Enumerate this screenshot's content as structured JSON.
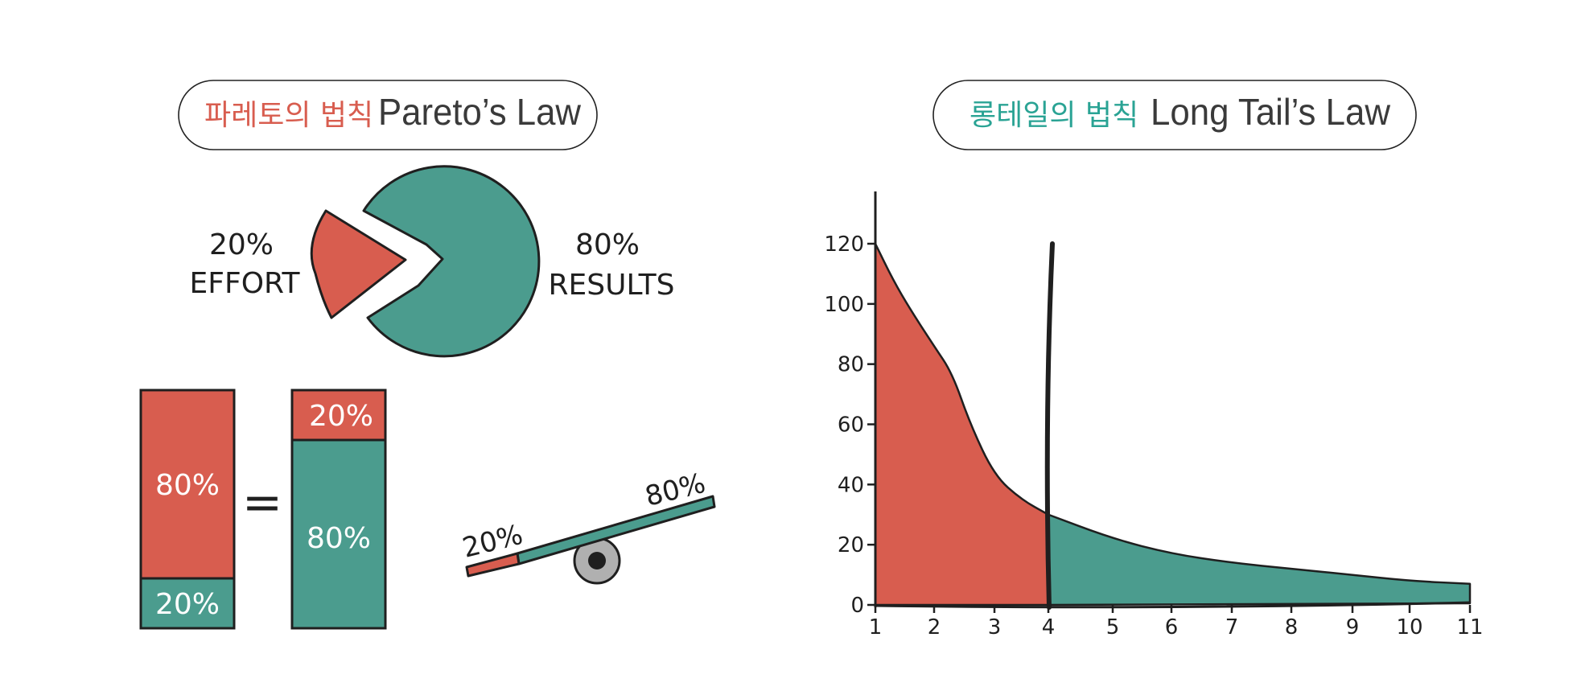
{
  "pareto": {
    "title_kr": "파레토의 법칙",
    "title_en": "Pareto’s Law",
    "pie_effort_pct": "20%",
    "pie_effort_label": "EFFORT",
    "pie_results_pct": "80%",
    "pie_results_label": "RESULTS",
    "bar_left_top": "80%",
    "bar_left_bottom": "20%",
    "equals": "=",
    "bar_right_top": "20%",
    "bar_right_bottom": "80%",
    "seesaw_left": "20%",
    "seesaw_right": "80%"
  },
  "longtail": {
    "title_kr": "롱테일의 법칙",
    "title_en": "Long Tail’s Law"
  },
  "colors": {
    "red": "#D85D4F",
    "teal": "#4B9C8E",
    "ink": "#1f1f1f",
    "title_red": "#D85D4F",
    "title_teal": "#2aa394",
    "title_gray": "#3a3a3a"
  },
  "chart_data": [
    {
      "type": "pie",
      "categories": [
        "EFFORT",
        "RESULTS"
      ],
      "values": [
        20,
        80
      ]
    },
    {
      "type": "bar",
      "categories": [
        "left",
        "right"
      ],
      "series": [
        {
          "values": [
            80,
            20
          ]
        },
        {
          "values": [
            20,
            80
          ]
        }
      ]
    },
    {
      "type": "area",
      "x_ticks": [
        1,
        2,
        3,
        4,
        5,
        6,
        7,
        8,
        9,
        10,
        11
      ],
      "y_ticks": [
        0,
        20,
        40,
        60,
        80,
        100,
        120
      ],
      "xlim": [
        1,
        11
      ],
      "ylim": [
        0,
        120
      ],
      "x": [
        1,
        1.3,
        1.6,
        2,
        2.3,
        2.6,
        3,
        3.5,
        4,
        5,
        6,
        7,
        8,
        9,
        10,
        11
      ],
      "y": [
        120,
        108,
        98,
        86,
        77,
        60,
        43,
        35,
        30,
        22,
        17,
        14,
        12,
        10,
        8,
        7
      ],
      "split_x": 4
    }
  ]
}
